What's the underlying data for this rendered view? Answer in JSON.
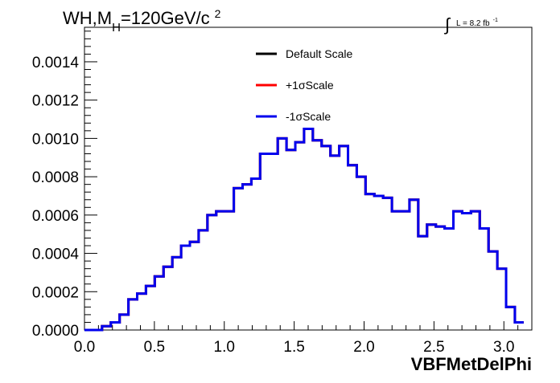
{
  "chart_data": {
    "type": "line",
    "title": {
      "main": "WH,M",
      "sub": "H",
      "after": "=120GeV/c",
      "sup": "2"
    },
    "lumi": {
      "integral": "∫",
      "text": "L = 8.2 fb",
      "sup": "-1"
    },
    "xlabel": "VBFMetDelPhi",
    "ylabel": "",
    "xlim": [
      0.0,
      3.2
    ],
    "ylim": [
      0.0,
      0.00158
    ],
    "xticks": [
      "0.0",
      "0.5",
      "1.0",
      "1.5",
      "2.0",
      "2.5",
      "3.0"
    ],
    "yticks": [
      "0.0000",
      "0.0002",
      "0.0004",
      "0.0006",
      "0.0008",
      "0.0010",
      "0.0012",
      "0.0014"
    ],
    "grid": false,
    "legend_position": "top-center",
    "bin_edges": [
      0.0,
      0.0628,
      0.1257,
      0.1885,
      0.2513,
      0.3142,
      0.377,
      0.4398,
      0.5027,
      0.5655,
      0.6283,
      0.6912,
      0.754,
      0.8168,
      0.8796,
      0.9425,
      1.0053,
      1.0681,
      1.131,
      1.1938,
      1.2566,
      1.3195,
      1.3823,
      1.4451,
      1.508,
      1.5708,
      1.6336,
      1.6965,
      1.7593,
      1.8221,
      1.885,
      1.9478,
      2.0106,
      2.0735,
      2.1363,
      2.1991,
      2.2619,
      2.3248,
      2.3876,
      2.4504,
      2.5133,
      2.5761,
      2.6389,
      2.7018,
      2.7646,
      2.8274,
      2.8903,
      2.9531,
      3.0159,
      3.0788,
      3.1416
    ],
    "series": [
      {
        "name": "Default Scale",
        "color": "#000000",
        "values": [
          0.0,
          0.0,
          2e-05,
          4e-05,
          8e-05,
          0.00016,
          0.00019,
          0.00023,
          0.00028,
          0.00033,
          0.00038,
          0.00044,
          0.00046,
          0.00052,
          0.0006,
          0.00062,
          0.00062,
          0.00074,
          0.00076,
          0.00079,
          0.00092,
          0.00092,
          0.001,
          0.00094,
          0.00098,
          0.00105,
          0.00099,
          0.00096,
          0.00091,
          0.00096,
          0.00086,
          0.0008,
          0.00071,
          0.0007,
          0.00069,
          0.00062,
          0.00062,
          0.00068,
          0.00049,
          0.00055,
          0.00054,
          0.00053,
          0.00062,
          0.00061,
          0.00062,
          0.00053,
          0.00041,
          0.00032,
          0.00012,
          4e-05
        ]
      },
      {
        "name": "+1σScale",
        "color": "#ff0000",
        "values": [
          0.0,
          0.0,
          2e-05,
          4e-05,
          8e-05,
          0.00016,
          0.00019,
          0.00023,
          0.00028,
          0.00033,
          0.00038,
          0.00044,
          0.00046,
          0.00052,
          0.0006,
          0.00062,
          0.00062,
          0.00074,
          0.00076,
          0.00079,
          0.00092,
          0.00092,
          0.001,
          0.00094,
          0.00098,
          0.00105,
          0.00099,
          0.00096,
          0.00091,
          0.00096,
          0.00086,
          0.0008,
          0.00071,
          0.0007,
          0.00069,
          0.00062,
          0.00062,
          0.00068,
          0.00049,
          0.00055,
          0.00054,
          0.00053,
          0.00062,
          0.00061,
          0.00062,
          0.00053,
          0.00041,
          0.00032,
          0.00012,
          4e-05
        ]
      },
      {
        "name": "-1σScale",
        "color": "#0000ee",
        "values": [
          0.0,
          0.0,
          2e-05,
          4e-05,
          8e-05,
          0.00016,
          0.00019,
          0.00023,
          0.00028,
          0.00033,
          0.00038,
          0.00044,
          0.00046,
          0.00052,
          0.0006,
          0.00062,
          0.00062,
          0.00074,
          0.00076,
          0.00079,
          0.00092,
          0.00092,
          0.001,
          0.00094,
          0.00098,
          0.00105,
          0.00099,
          0.00096,
          0.00091,
          0.00096,
          0.00086,
          0.0008,
          0.00071,
          0.0007,
          0.00069,
          0.00062,
          0.00062,
          0.00068,
          0.00049,
          0.00055,
          0.00054,
          0.00053,
          0.00062,
          0.00061,
          0.00062,
          0.00053,
          0.00041,
          0.00032,
          0.00012,
          4e-05
        ]
      }
    ]
  }
}
